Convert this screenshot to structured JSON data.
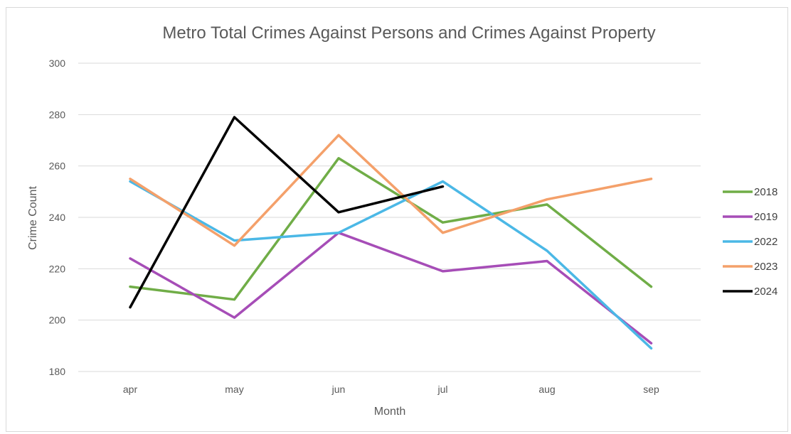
{
  "chart_data": {
    "type": "line",
    "title": "Metro Total Crimes Against Persons and Crimes Against Property",
    "xlabel": "Month",
    "ylabel": "Crime Count",
    "categories": [
      "apr",
      "may",
      "jun",
      "jul",
      "aug",
      "sep"
    ],
    "ylim": [
      180,
      300
    ],
    "yticks": [
      180,
      200,
      220,
      240,
      260,
      280,
      300
    ],
    "grid": true,
    "legend_position": "right",
    "series": [
      {
        "name": "2018",
        "color": "#70AD47",
        "values": [
          213,
          208,
          263,
          238,
          245,
          213
        ]
      },
      {
        "name": "2019",
        "color": "#A64DB7",
        "values": [
          224,
          201,
          234,
          219,
          223,
          191
        ]
      },
      {
        "name": "2022",
        "color": "#4BB8E6",
        "values": [
          254,
          231,
          234,
          254,
          227,
          189
        ]
      },
      {
        "name": "2023",
        "color": "#F4A06A",
        "values": [
          255,
          229,
          272,
          234,
          247,
          255
        ]
      },
      {
        "name": "2024",
        "color": "#000000",
        "values": [
          205,
          279,
          242,
          252,
          null,
          null
        ]
      }
    ]
  }
}
